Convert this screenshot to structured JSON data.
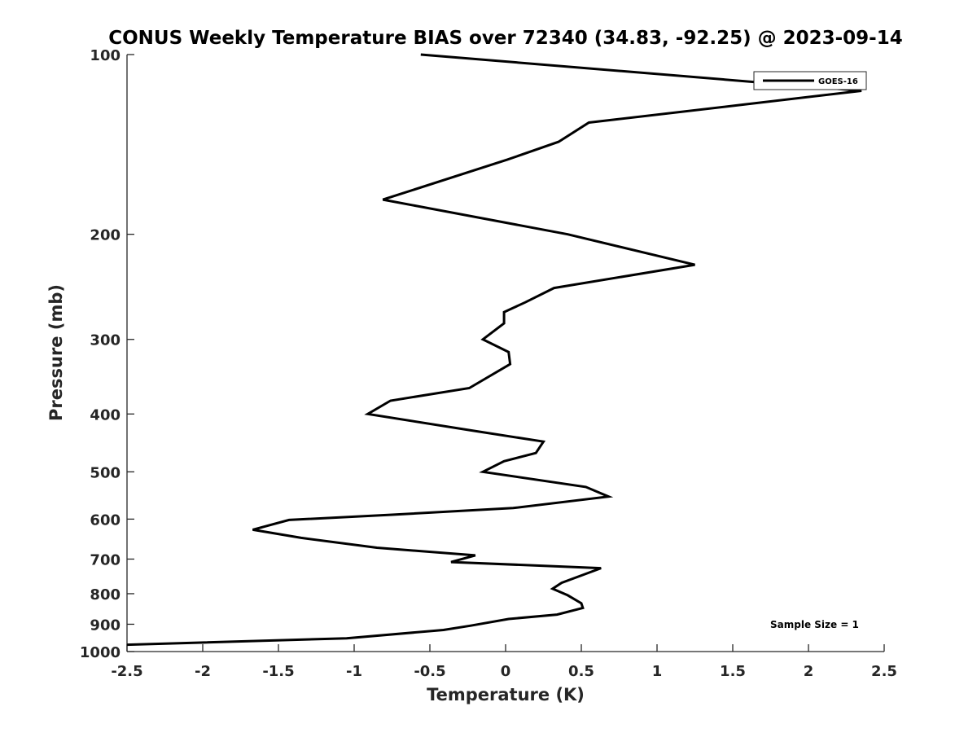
{
  "chart_data": {
    "type": "line",
    "title": "CONUS Weekly Temperature BIAS over 72340 (34.83, -92.25) @ 2023-09-14",
    "xlabel": "Temperature (K)",
    "ylabel": "Pressure (mb)",
    "xlim": [
      -2.5,
      2.5
    ],
    "ylim": [
      1000,
      100
    ],
    "yscale": "log",
    "xticks": [
      -2.5,
      -2,
      -1.5,
      -1,
      -0.5,
      0,
      0.5,
      1,
      1.5,
      2,
      2.5
    ],
    "xtick_labels": [
      "-2.5",
      "-2",
      "-1.5",
      "-1",
      "-0.5",
      "0",
      "0.5",
      "1",
      "1.5",
      "2",
      "2.5"
    ],
    "yticks": [
      100,
      200,
      300,
      400,
      500,
      600,
      700,
      800,
      900,
      1000
    ],
    "ytick_labels": [
      "100",
      "200",
      "300",
      "400",
      "500",
      "600",
      "700",
      "800",
      "900",
      "1000"
    ],
    "grid": false,
    "legend_position": "top-right",
    "line_color": "#000000",
    "series": [
      {
        "name": "GOES-16",
        "x": [
          -0.56,
          2.35,
          0.55,
          0.35,
          0.01,
          -0.81,
          0.41,
          1.25,
          0.32,
          0.13,
          -0.01,
          -0.01,
          -0.15,
          0.02,
          0.03,
          -0.24,
          -0.76,
          -0.91,
          -0.23,
          0.25,
          0.2,
          -0.01,
          -0.15,
          0.53,
          0.68,
          0.05,
          -0.75,
          -1.43,
          -1.67,
          -1.35,
          -0.85,
          -0.2,
          -0.36,
          0.63,
          0.37,
          0.31,
          0.41,
          0.5,
          0.51,
          0.34,
          0.02,
          -0.23,
          -0.41,
          -1.05,
          -2.52
        ],
        "y": [
          100,
          115,
          130,
          140,
          150,
          175,
          200,
          225,
          246,
          260,
          270,
          282,
          300,
          315,
          330,
          362,
          380,
          400,
          426,
          445,
          465,
          480,
          500,
          530,
          550,
          575,
          590,
          602,
          625,
          645,
          670,
          690,
          708,
          725,
          767,
          785,
          805,
          830,
          845,
          867,
          882,
          905,
          920,
          950,
          974
        ]
      }
    ],
    "annotations": [
      "Sample Size = 1"
    ]
  }
}
